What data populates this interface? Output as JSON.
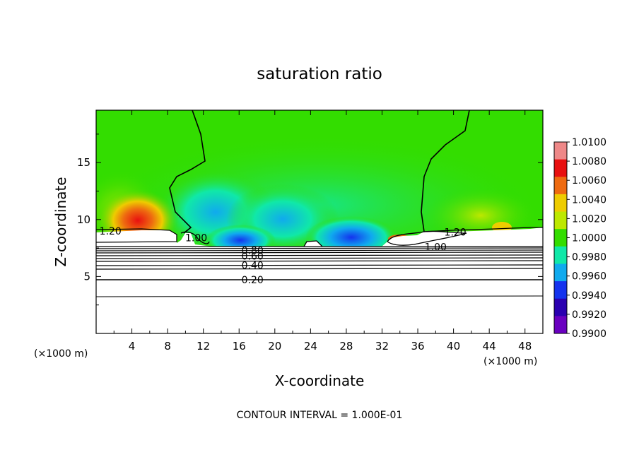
{
  "chart_data": {
    "type": "heatmap",
    "title": "saturation ratio",
    "xlabel": "X-coordinate",
    "ylabel": "Z-coordinate",
    "x_unit": "(×1000 m)",
    "y_unit": "(×1000 m)",
    "xlim": [
      0,
      50
    ],
    "ylim": [
      0,
      19.6
    ],
    "x_ticks": [
      4,
      8,
      12,
      16,
      20,
      24,
      28,
      32,
      36,
      40,
      44,
      48
    ],
    "y_ticks": [
      5,
      10,
      15
    ],
    "colorbar": {
      "labels": [
        "1.0100",
        "1.0080",
        "1.0060",
        "1.0040",
        "1.0020",
        "1.0000",
        "0.9980",
        "0.9960",
        "0.9940",
        "0.9920",
        "0.9900"
      ],
      "colors": [
        "#ee8888",
        "#e81010",
        "#ee6a10",
        "#eecc00",
        "#bde800",
        "#33dd00",
        "#10e8a8",
        "#10aaee",
        "#1433ee",
        "#2a00b0",
        "#6a00c0"
      ]
    },
    "contour_labels": [
      {
        "text": "1.20",
        "x": 1.6,
        "y": 9.0
      },
      {
        "text": "1.00",
        "x": 11.2,
        "y": 8.4
      },
      {
        "text": "0.80",
        "x": 17.5,
        "y": 7.3
      },
      {
        "text": "0.60",
        "x": 17.5,
        "y": 6.8
      },
      {
        "text": "0.40",
        "x": 17.5,
        "y": 6.0
      },
      {
        "text": "0.20",
        "x": 17.5,
        "y": 4.7
      },
      {
        "text": "1.20",
        "x": 40.2,
        "y": 8.9
      },
      {
        "text": "1.00",
        "x": 38.0,
        "y": 7.6
      }
    ],
    "footer": "CONTOUR INTERVAL = 1.000E-01"
  }
}
